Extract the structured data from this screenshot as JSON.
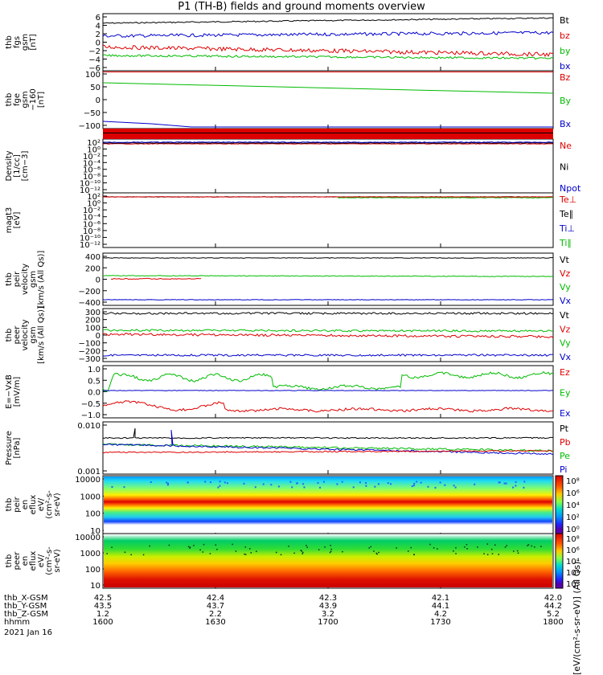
{
  "title": "P1 (TH-B) fields and ground moments overview",
  "panels": [
    {
      "ylabel": [
        "thb",
        "fgs",
        "gsm",
        "[nT]"
      ],
      "ticks": [
        "6",
        "4",
        "2",
        "0",
        "−2",
        "−4",
        "−6"
      ],
      "legend": [
        {
          "t": "Bt",
          "c": "#000000"
        },
        {
          "t": "bz",
          "c": "#dd0000"
        },
        {
          "t": "by",
          "c": "#00bb00"
        },
        {
          "t": "bx",
          "c": "#0000cc"
        }
      ]
    },
    {
      "ylabel": [
        "thb",
        "fge",
        "gsm",
        "−160",
        "[nT]"
      ],
      "ticks": [
        "100",
        "50",
        "0",
        "−50",
        "−100"
      ],
      "legend": [
        {
          "t": "Bz",
          "c": "#dd0000"
        },
        {
          "t": "By",
          "c": "#00bb00"
        },
        {
          "t": "Bx",
          "c": "#0000cc"
        }
      ]
    },
    {
      "ylabel": [
        "Density",
        "[1/cc]",
        "[cm−3]"
      ],
      "ticks": [
        "10²",
        "10⁰",
        "10⁻²",
        "10⁻⁴",
        "10⁻⁶",
        "10⁻⁸",
        "10⁻¹⁰",
        "10⁻¹²"
      ],
      "legend": [
        {
          "t": "Ne",
          "c": "#dd0000"
        },
        {
          "t": "Ni",
          "c": "#000000"
        },
        {
          "t": "Npot",
          "c": "#0000cc"
        }
      ]
    },
    {
      "ylabel": [
        "magt3",
        "[eV]"
      ],
      "ticks": [
        "10²",
        "10⁰",
        "10⁻²",
        "10⁻⁴",
        "10⁻⁶",
        "10⁻⁸",
        "10⁻¹⁰",
        "10⁻¹²"
      ],
      "legend": [
        {
          "t": "Te⊥",
          "c": "#dd0000"
        },
        {
          "t": "Te∥",
          "c": "#000000"
        },
        {
          "t": "Ti⊥",
          "c": "#0000cc"
        },
        {
          "t": "Ti∥",
          "c": "#00bb00"
        }
      ]
    },
    {
      "ylabel": [
        "thb",
        "peir",
        "velocity",
        "gsm",
        "[km/s (All Qs)]"
      ],
      "ticks": [
        "400",
        "200",
        "0",
        "−200",
        "−400"
      ],
      "legend": [
        {
          "t": "Vt",
          "c": "#000000"
        },
        {
          "t": "Vz",
          "c": "#dd0000"
        },
        {
          "t": "Vy",
          "c": "#00bb00"
        },
        {
          "t": "Vx",
          "c": "#0000cc"
        }
      ]
    },
    {
      "ylabel": [
        "thb",
        "peer",
        "velocity",
        "gsm",
        "[km/s (All Qs)]"
      ],
      "ticks": [
        "300",
        "200",
        "100",
        "0",
        "−100",
        "−200",
        "−300"
      ],
      "legend": [
        {
          "t": "Vt",
          "c": "#000000"
        },
        {
          "t": "Vz",
          "c": "#dd0000"
        },
        {
          "t": "Vy",
          "c": "#00bb00"
        },
        {
          "t": "Vx",
          "c": "#0000cc"
        }
      ]
    },
    {
      "ylabel": [
        "E=−VxB",
        "[mV/m]"
      ],
      "ticks": [
        "1.0",
        "0.5",
        "0.0",
        "−0.5",
        "−1.0"
      ],
      "legend": [
        {
          "t": "Ez",
          "c": "#dd0000"
        },
        {
          "t": "Ey",
          "c": "#00bb00"
        },
        {
          "t": "Ex",
          "c": "#0000cc"
        }
      ]
    },
    {
      "ylabel": [
        "Pressure",
        "[nPa]"
      ],
      "ticks": [
        "0.010",
        "0.001"
      ],
      "legend": [
        {
          "t": "Pt",
          "c": "#000000"
        },
        {
          "t": "Pb",
          "c": "#dd0000"
        },
        {
          "t": "Pe",
          "c": "#00bb00"
        },
        {
          "t": "Pi",
          "c": "#0000cc"
        }
      ]
    },
    {
      "ylabel": [
        "thb",
        "peir",
        "en",
        "eflux",
        "eV/",
        "(cm²-s-",
        "sr-eV)"
      ],
      "ticks": [
        "10000",
        "1000",
        "100",
        "10"
      ],
      "legend": []
    },
    {
      "ylabel": [
        "thb",
        "peer",
        "en",
        "eflux",
        "eV/",
        "(cm²-s-",
        "sr-eV)"
      ],
      "ticks": [
        "10000",
        "1000",
        "100",
        "10"
      ],
      "legend": []
    }
  ],
  "colorbar": {
    "label": "[eV/(cm²-s-sr-eV)] (All Qs)",
    "top_ticks": [
      "10⁸",
      "10⁶",
      "10⁴",
      "10²",
      "10⁰"
    ],
    "bottom_ticks": [
      "10⁸",
      "10⁶",
      "10⁴",
      "10²",
      "10⁰"
    ]
  },
  "xaxis": {
    "row_labels": [
      "thb_X-GSM",
      "thb_Y-GSM",
      "thb_Z-GSM",
      "hhmm",
      "2021 Jan 16"
    ],
    "columns": [
      {
        "x": "42.5",
        "y": "43.5",
        "z": "1.2",
        "t": "1600"
      },
      {
        "x": "42.4",
        "y": "43.7",
        "z": "2.2",
        "t": "1630"
      },
      {
        "x": "42.3",
        "y": "43.9",
        "z": "3.2",
        "t": "1700"
      },
      {
        "x": "42.1",
        "y": "44.1",
        "z": "4.2",
        "t": "1730"
      },
      {
        "x": "42.0",
        "y": "44.2",
        "z": "5.2",
        "t": "1800"
      }
    ]
  },
  "chart_data": {
    "type": "line",
    "title": "P1 (TH-B) fields and ground moments overview",
    "x": [
      "1600",
      "1630",
      "1700",
      "1730",
      "1800"
    ],
    "xlabel": "hhmm",
    "subplots": [
      {
        "name": "thb fgs gsm [nT]",
        "ylim": [
          -6,
          6
        ],
        "series": [
          {
            "name": "Bt",
            "values": [
              4.0,
              4.3,
              4.5,
              4.8,
              5.0
            ]
          },
          {
            "name": "bz",
            "values": [
              -1.0,
              -1.6,
              -1.9,
              -2.0,
              -2.5
            ]
          },
          {
            "name": "by",
            "values": [
              -2.5,
              -3.0,
              -3.2,
              -3.3,
              -3.3
            ]
          },
          {
            "name": "bx",
            "values": [
              1.5,
              2.2,
              2.0,
              2.2,
              2.0
            ]
          }
        ]
      },
      {
        "name": "thb fge gsm −160 [nT]",
        "ylim": [
          -120,
          100
        ],
        "series": [
          {
            "name": "Bz",
            "values": [
              0,
              0,
              0,
              0,
              0
            ]
          },
          {
            "name": "By",
            "values": [
              65,
              55,
              45,
              35,
              22
            ]
          },
          {
            "name": "Bx",
            "values": [
              -100,
              -120,
              -120,
              -120,
              -120
            ]
          }
        ]
      },
      {
        "name": "Density [1/cc] [cm−3]",
        "scale": "log",
        "ylim": [
          1e-13,
          100.0
        ],
        "series": [
          {
            "name": "Ne",
            "values": [
              0.1,
              0.1,
              0.1,
              0.1,
              0.1
            ]
          },
          {
            "name": "Ni",
            "values": [
              0.12,
              0.12,
              0.12,
              0.12,
              0.12
            ]
          },
          {
            "name": "Npot",
            "values": [
              0.2,
              0.25,
              0.2,
              0.2,
              0.2
            ]
          }
        ]
      },
      {
        "name": "magt3 [eV]",
        "scale": "log",
        "ylim": [
          1e-13,
          100.0
        ],
        "series": [
          {
            "name": "Te⊥",
            "values": [
              1,
              1,
              1,
              1,
              1
            ]
          },
          {
            "name": "Te∥",
            "values": [
              1,
              1,
              1,
              1,
              1
            ]
          },
          {
            "name": "Ti⊥",
            "values": [
              1,
              1,
              1,
              1,
              1
            ]
          },
          {
            "name": "Ti∥",
            "values": [
              1,
              1,
              1,
              1,
              1
            ]
          }
        ]
      },
      {
        "name": "thb peir velocity gsm [km/s (All Qs)]",
        "ylim": [
          -400,
          400
        ],
        "series": [
          {
            "name": "Vt",
            "values": [
              320,
              320,
              320,
              320,
              320
            ]
          },
          {
            "name": "Vz",
            "values": [
              10,
              null,
              null,
              null,
              null
            ]
          },
          {
            "name": "Vy",
            "values": [
              40,
              40,
              40,
              40,
              40
            ]
          },
          {
            "name": "Vx",
            "values": [
              -320,
              -320,
              -320,
              -320,
              -320
            ]
          }
        ]
      },
      {
        "name": "thb peer velocity gsm [km/s (All Qs)]",
        "ylim": [
          -300,
          330
        ],
        "series": [
          {
            "name": "Vt",
            "values": [
              240,
              240,
              240,
              240,
              240
            ]
          },
          {
            "name": "Vz",
            "values": [
              -30,
              -40,
              -45,
              -40,
              -50
            ]
          },
          {
            "name": "Vy",
            "values": [
              30,
              35,
              35,
              30,
              30
            ]
          },
          {
            "name": "Vx",
            "values": [
              -240,
              -240,
              -240,
              -240,
              -240
            ]
          }
        ]
      },
      {
        "name": "E=−VxB [mV/m]",
        "ylim": [
          -1.2,
          1.3
        ],
        "series": [
          {
            "name": "Ez",
            "values": [
              -0.9,
              -0.6,
              -1.0,
              -0.85,
              -1.0
            ]
          },
          {
            "name": "Ey",
            "values": [
              0.8,
              1.0,
              0.1,
              0.3,
              0.8
            ]
          },
          {
            "name": "Ex",
            "values": [
              0.0,
              0.0,
              0.0,
              0.0,
              0.0
            ]
          }
        ]
      },
      {
        "name": "Pressure [nPa]",
        "scale": "log",
        "ylim": [
          0.001,
          0.05
        ],
        "series": [
          {
            "name": "Pt",
            "values": [
              0.02,
              0.02,
              0.02,
              0.02,
              0.02
            ]
          },
          {
            "name": "Pb",
            "values": [
              0.007,
              0.007,
              0.007,
              0.008,
              0.008
            ]
          },
          {
            "name": "Pe",
            "values": [
              0.012,
              0.011,
              0.01,
              0.008,
              0.009
            ]
          },
          {
            "name": "Pi",
            "values": [
              0.012,
              0.009,
              0.008,
              0.007,
              0.006
            ]
          }
        ]
      },
      {
        "name": "thb peir en eflux",
        "type": "heatmap",
        "scale": "log",
        "ylim": [
          5,
          10000
        ]
      },
      {
        "name": "thb peer en eflux",
        "type": "heatmap",
        "scale": "log",
        "ylim": [
          5,
          10000
        ]
      }
    ]
  }
}
